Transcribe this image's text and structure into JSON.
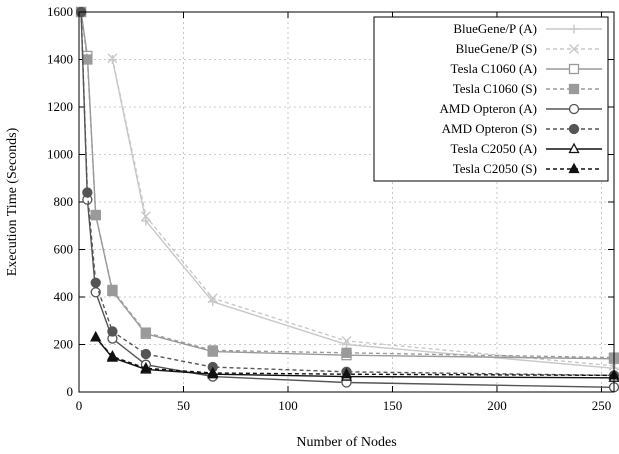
{
  "chart_data": {
    "type": "line",
    "title": "",
    "xlabel": "Number of Nodes",
    "ylabel": "Execution Time (Seconds)",
    "xlim": [
      0,
      256
    ],
    "ylim": [
      0,
      1600
    ],
    "xticks": [
      0,
      50,
      100,
      150,
      200,
      250
    ],
    "yticks": [
      0,
      200,
      400,
      600,
      800,
      1000,
      1200,
      1400,
      1600
    ],
    "grid": true,
    "legend_position": "top-right",
    "series": [
      {
        "name": "BlueGene/P (A)",
        "color": "#c8c8c8",
        "dash": "solid",
        "marker": "plus",
        "x": [
          16,
          32,
          64,
          128,
          256
        ],
        "y": [
          1400,
          720,
          380,
          200,
          100
        ]
      },
      {
        "name": "BlueGene/P (S)",
        "color": "#c8c8c8",
        "dash": "dashed",
        "marker": "x",
        "x": [
          16,
          32,
          64,
          128,
          256
        ],
        "y": [
          1405,
          740,
          395,
          215,
          110
        ]
      },
      {
        "name": "Tesla C1060 (A)",
        "color": "#9a9a9a",
        "dash": "solid",
        "marker": "square-open",
        "x": [
          1,
          4,
          8,
          16,
          32,
          64,
          128,
          256
        ],
        "y": [
          1600,
          1415,
          745,
          425,
          245,
          170,
          155,
          140
        ]
      },
      {
        "name": "Tesla C1060 (S)",
        "color": "#9a9a9a",
        "dash": "dashed",
        "marker": "square-filled",
        "x": [
          1,
          4,
          8,
          16,
          32,
          64,
          128,
          256
        ],
        "y": [
          1600,
          1400,
          745,
          430,
          250,
          175,
          165,
          145
        ]
      },
      {
        "name": "AMD Opteron (A)",
        "color": "#555555",
        "dash": "solid",
        "marker": "circle-open",
        "x": [
          1,
          4,
          8,
          16,
          32,
          64,
          128,
          256
        ],
        "y": [
          1600,
          810,
          420,
          225,
          115,
          65,
          40,
          20
        ]
      },
      {
        "name": "AMD Opteron (S)",
        "color": "#555555",
        "dash": "dashed",
        "marker": "circle-filled",
        "x": [
          1,
          4,
          8,
          16,
          32,
          64,
          128,
          256
        ],
        "y": [
          1600,
          840,
          460,
          255,
          160,
          105,
          85,
          70
        ]
      },
      {
        "name": "Tesla C2050 (A)",
        "color": "#111111",
        "dash": "solid",
        "marker": "triangle-open",
        "x": [
          8,
          16,
          32,
          64,
          128,
          256
        ],
        "y": [
          230,
          145,
          95,
          75,
          65,
          60
        ]
      },
      {
        "name": "Tesla C2050 (S)",
        "color": "#111111",
        "dash": "dashed",
        "marker": "triangle-filled",
        "x": [
          8,
          16,
          32,
          64,
          128,
          256
        ],
        "y": [
          230,
          150,
          100,
          80,
          75,
          70
        ]
      }
    ]
  }
}
